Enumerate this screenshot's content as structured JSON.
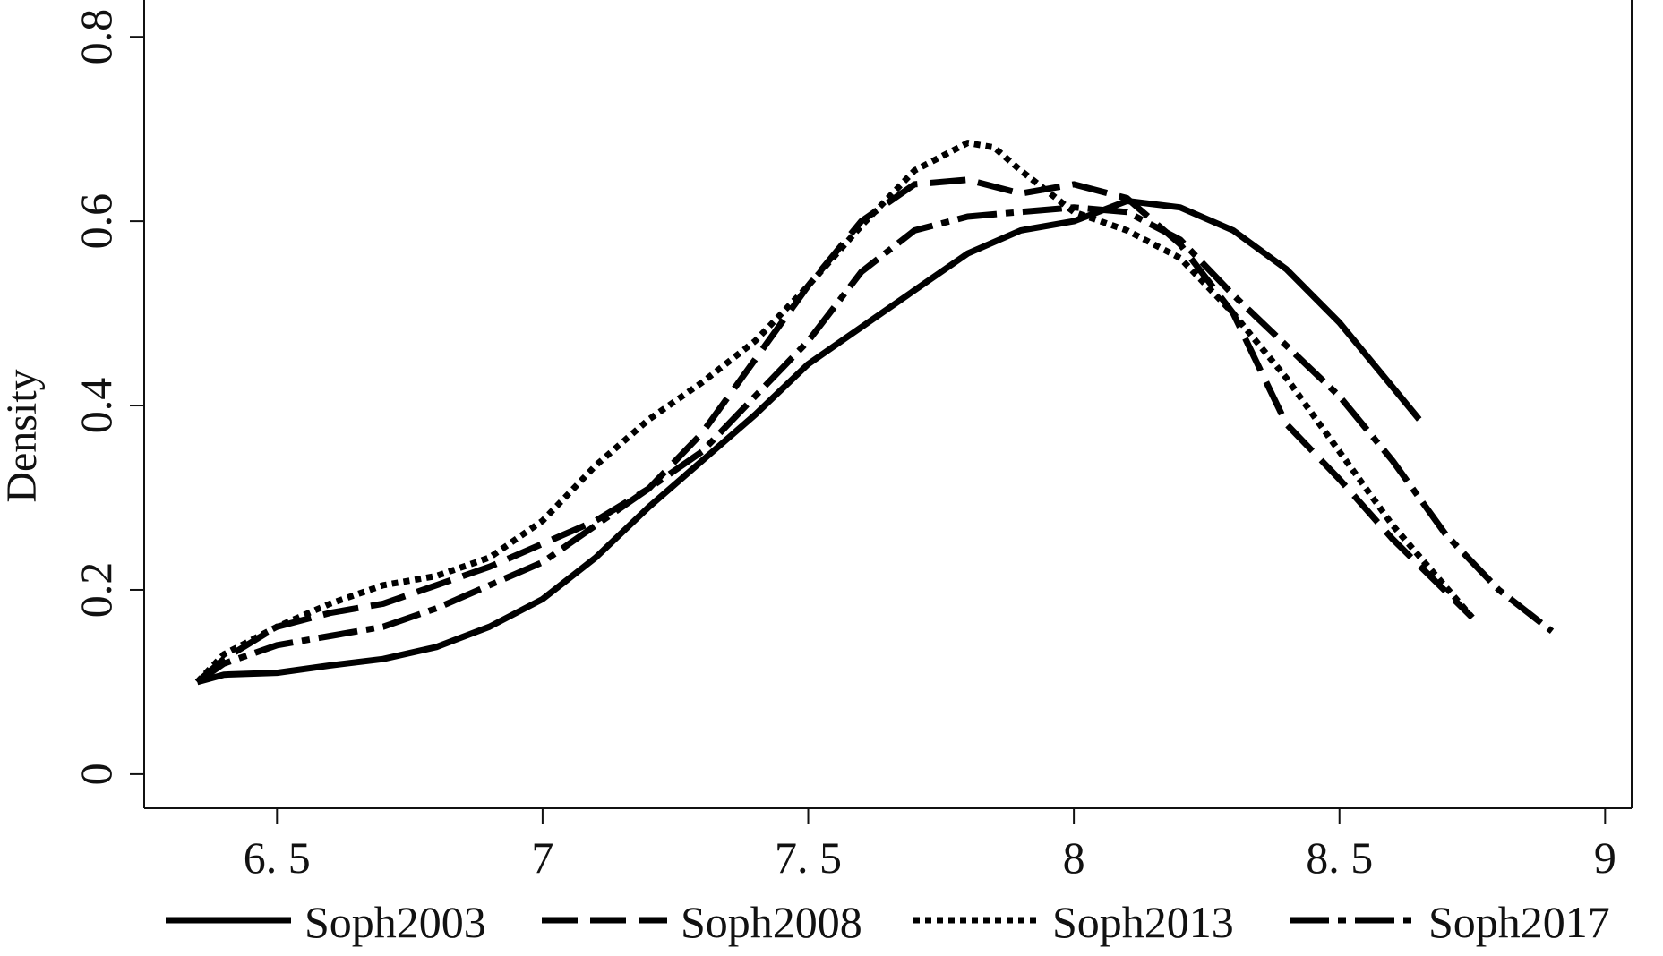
{
  "chart_data": {
    "type": "line",
    "title": "",
    "xlabel": "",
    "ylabel": "Density",
    "xlim": [
      6.25,
      9.05
    ],
    "ylim": [
      -0.037,
      0.84
    ],
    "xticks": [
      6.5,
      7,
      7.5,
      8,
      8.5,
      9
    ],
    "xtick_labels": [
      "6. 5",
      "7",
      "7. 5",
      "8",
      "8. 5",
      "9"
    ],
    "yticks": [
      0,
      0.2,
      0.4,
      0.6,
      0.8
    ],
    "ytick_labels": [
      "0",
      "0.2",
      "0.4",
      "0.6",
      "0.8"
    ],
    "grid": false,
    "legend_position": "bottom",
    "series": [
      {
        "name": "Soph2003",
        "style": "solid",
        "color": "#000000",
        "x": [
          6.35,
          6.4,
          6.5,
          6.6,
          6.7,
          6.8,
          6.9,
          7.0,
          7.1,
          7.2,
          7.3,
          7.4,
          7.5,
          7.6,
          7.7,
          7.8,
          7.9,
          8.0,
          8.1,
          8.2,
          8.3,
          8.4,
          8.5,
          8.6,
          8.65
        ],
        "values": [
          0.1,
          0.108,
          0.11,
          0.118,
          0.125,
          0.138,
          0.16,
          0.19,
          0.235,
          0.29,
          0.34,
          0.39,
          0.445,
          0.485,
          0.525,
          0.565,
          0.59,
          0.6,
          0.622,
          0.615,
          0.59,
          0.548,
          0.49,
          0.42,
          0.385
        ]
      },
      {
        "name": "Soph2008",
        "style": "dashed",
        "color": "#000000",
        "x": [
          6.35,
          6.4,
          6.5,
          6.6,
          6.7,
          6.8,
          6.9,
          7.0,
          7.1,
          7.2,
          7.3,
          7.4,
          7.5,
          7.6,
          7.7,
          7.8,
          7.9,
          8.0,
          8.1,
          8.2,
          8.3,
          8.35,
          8.4,
          8.5,
          8.6,
          8.75
        ],
        "values": [
          0.1,
          0.125,
          0.16,
          0.175,
          0.185,
          0.205,
          0.225,
          0.25,
          0.275,
          0.31,
          0.37,
          0.45,
          0.53,
          0.6,
          0.64,
          0.645,
          0.63,
          0.64,
          0.625,
          0.575,
          0.5,
          0.44,
          0.38,
          0.32,
          0.255,
          0.17
        ]
      },
      {
        "name": "Soph2013",
        "style": "dotted",
        "color": "#000000",
        "x": [
          6.35,
          6.4,
          6.5,
          6.6,
          6.7,
          6.8,
          6.9,
          7.0,
          7.1,
          7.2,
          7.3,
          7.4,
          7.5,
          7.6,
          7.7,
          7.8,
          7.85,
          7.9,
          8.0,
          8.1,
          8.2,
          8.3,
          8.4,
          8.5,
          8.6,
          8.75
        ],
        "values": [
          0.1,
          0.13,
          0.16,
          0.185,
          0.205,
          0.215,
          0.235,
          0.275,
          0.335,
          0.385,
          0.425,
          0.47,
          0.53,
          0.595,
          0.655,
          0.685,
          0.68,
          0.655,
          0.61,
          0.59,
          0.56,
          0.5,
          0.43,
          0.35,
          0.27,
          0.17
        ]
      },
      {
        "name": "Soph2017",
        "style": "dash-dot",
        "color": "#000000",
        "x": [
          6.35,
          6.4,
          6.5,
          6.6,
          6.7,
          6.8,
          6.9,
          7.0,
          7.1,
          7.2,
          7.3,
          7.4,
          7.5,
          7.6,
          7.7,
          7.8,
          7.9,
          8.0,
          8.1,
          8.2,
          8.3,
          8.4,
          8.5,
          8.6,
          8.7,
          8.8,
          8.9
        ],
        "values": [
          0.1,
          0.12,
          0.14,
          0.15,
          0.16,
          0.18,
          0.205,
          0.23,
          0.27,
          0.31,
          0.35,
          0.41,
          0.47,
          0.545,
          0.59,
          0.605,
          0.61,
          0.615,
          0.61,
          0.58,
          0.52,
          0.465,
          0.41,
          0.34,
          0.26,
          0.2,
          0.155
        ]
      }
    ]
  }
}
